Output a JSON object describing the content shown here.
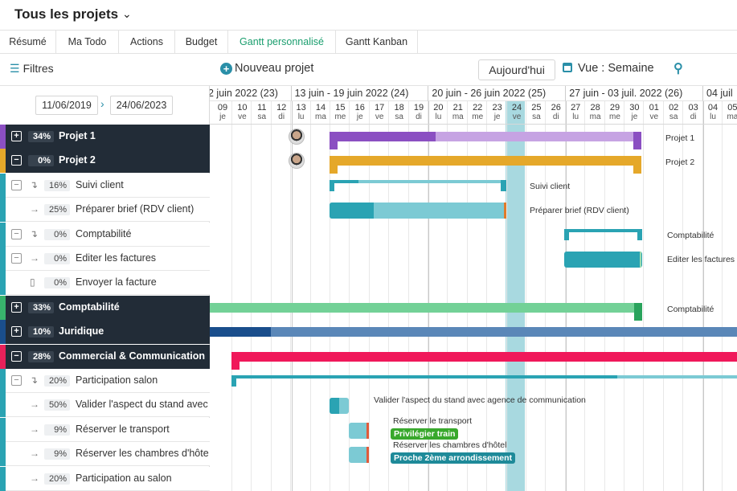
{
  "header": {
    "title": "Tous les projets"
  },
  "tabs": [
    "Résumé",
    "Ma Todo",
    "Actions",
    "Budget",
    "Gantt personnalisé",
    "Gantt Kanban"
  ],
  "toolbar": {
    "filters": "Filtres",
    "new_project": "Nouveau projet",
    "today": "Aujourd'hui",
    "view": "Vue : Semaine"
  },
  "date_range": {
    "start": "11/06/2019",
    "end": "24/06/2023"
  },
  "weeks": [
    "2 juin 2022 (23)",
    "13 juin - 19 juin 2022 (24)",
    "20 juin - 26 juin 2022 (25)",
    "27 juin - 03 juil. 2022 (26)",
    "04 juil"
  ],
  "days": [
    {
      "n": "09",
      "d": "je"
    },
    {
      "n": "10",
      "d": "ve"
    },
    {
      "n": "11",
      "d": "sa"
    },
    {
      "n": "12",
      "d": "di"
    },
    {
      "n": "13",
      "d": "lu"
    },
    {
      "n": "14",
      "d": "ma"
    },
    {
      "n": "15",
      "d": "me"
    },
    {
      "n": "16",
      "d": "je"
    },
    {
      "n": "17",
      "d": "ve"
    },
    {
      "n": "18",
      "d": "sa"
    },
    {
      "n": "19",
      "d": "di"
    },
    {
      "n": "20",
      "d": "lu"
    },
    {
      "n": "21",
      "d": "ma"
    },
    {
      "n": "22",
      "d": "me"
    },
    {
      "n": "23",
      "d": "je"
    },
    {
      "n": "24",
      "d": "ve"
    },
    {
      "n": "25",
      "d": "sa"
    },
    {
      "n": "26",
      "d": "di"
    },
    {
      "n": "27",
      "d": "lu"
    },
    {
      "n": "28",
      "d": "ma"
    },
    {
      "n": "29",
      "d": "me"
    },
    {
      "n": "30",
      "d": "je"
    },
    {
      "n": "01",
      "d": "ve"
    },
    {
      "n": "02",
      "d": "sa"
    },
    {
      "n": "03",
      "d": "di"
    },
    {
      "n": "04",
      "d": "lu"
    },
    {
      "n": "05",
      "d": "ma"
    }
  ],
  "rows": [
    {
      "kind": "proj",
      "pct": "34%",
      "label": "Projet 1",
      "color": "#8b4fc2",
      "box": "+"
    },
    {
      "kind": "proj",
      "pct": "0%",
      "label": "Projet 2",
      "color": "#e5a82a",
      "box": "−"
    },
    {
      "kind": "task",
      "pct": "16%",
      "label": "Suivi client",
      "color": "#2aa3b3",
      "box": "−",
      "glyph": "↴"
    },
    {
      "kind": "task",
      "pct": "25%",
      "label": "Préparer brief (RDV client)",
      "color": "#2aa3b3",
      "glyph": "→"
    },
    {
      "kind": "task",
      "pct": "0%",
      "label": "Comptabilité",
      "color": "#2aa3b3",
      "box": "−",
      "glyph": "↴"
    },
    {
      "kind": "task",
      "pct": "0%",
      "label": "Editer les factures",
      "color": "#2aa3b3",
      "box": "−",
      "glyph": "→"
    },
    {
      "kind": "task",
      "pct": "0%",
      "label": "Envoyer la facture",
      "color": "#2aa3b3",
      "glyph": "▯"
    },
    {
      "kind": "proj",
      "pct": "33%",
      "label": "Comptabilité",
      "color": "#38b36c",
      "box": "+"
    },
    {
      "kind": "proj",
      "pct": "10%",
      "label": "Juridique",
      "color": "#1a4e8c",
      "box": "+"
    },
    {
      "kind": "proj",
      "pct": "28%",
      "label": "Commercial & Communication",
      "color": "#e8215a",
      "box": "−"
    },
    {
      "kind": "task",
      "pct": "20%",
      "label": "Participation salon",
      "color": "#2aa3b3",
      "box": "−",
      "glyph": "↴"
    },
    {
      "kind": "task",
      "pct": "50%",
      "label": "Valider l'aspect du stand avec agence de communication",
      "color": "#2aa3b3",
      "glyph": "→"
    },
    {
      "kind": "task",
      "pct": "9%",
      "label": "Réserver le transport",
      "color": "#2aa3b3",
      "glyph": "→"
    },
    {
      "kind": "task",
      "pct": "9%",
      "label": "Réserver les chambres d'hôtel",
      "color": "#2aa3b3",
      "glyph": "→"
    },
    {
      "kind": "task",
      "pct": "20%",
      "label": "Participation au salon",
      "color": "#2aa3b3",
      "glyph": "→"
    }
  ],
  "gantt_labels": {
    "p1": "Projet 1",
    "p2": "Projet 2",
    "suivi": "Suivi client",
    "brief": "Préparer brief (RDV client)",
    "compta_task": "Comptabilité",
    "factures": "Editer les factures",
    "compta_proj": "Comptabilité",
    "stand": "Valider l'aspect du stand avec agence de communication",
    "transport": "Réserver le transport",
    "transport_tag": "Privilégier train",
    "hotel": "Réserver les chambres d'hôtel",
    "hotel_tag": "Proche 2ème arrondissement"
  },
  "colors": {
    "projet1": "#8b4fc2",
    "projet1_light": "#c6a3e3",
    "projet2": "#e5a82a",
    "teal": "#2aa3b3",
    "teal_light": "#7ccad4",
    "compta": "#73d197",
    "compta_dark": "#29a35c",
    "juridique": "#1a4e8c",
    "juridique_light": "#5a87b8",
    "commercial": "#f0185a",
    "tag_green": "#38a82c",
    "tag_teal": "#1e8a99",
    "today": "#a8d9e0"
  }
}
